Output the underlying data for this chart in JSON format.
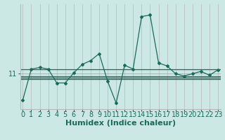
{
  "xlabel": "Humidex (Indice chaleur)",
  "bg_color": "#cce8e4",
  "line_color": "#1a6b5a",
  "grid_color_v": "#b8b8b8",
  "grid_color_h": "#c0a0a0",
  "x_values": [
    0,
    1,
    2,
    3,
    4,
    5,
    6,
    7,
    8,
    9,
    10,
    11,
    12,
    13,
    14,
    15,
    16,
    17,
    18,
    19,
    20,
    21,
    22,
    23
  ],
  "y_main": [
    9.3,
    11.3,
    11.4,
    11.3,
    10.4,
    10.4,
    11.05,
    11.6,
    11.85,
    12.3,
    10.5,
    9.1,
    11.55,
    11.3,
    14.7,
    14.8,
    11.7,
    11.5,
    11.0,
    10.85,
    11.0,
    11.15,
    10.9,
    11.25
  ],
  "y_hline1": 11.3,
  "y_hline2": 10.85,
  "y_hline3": 10.75,
  "y_hline4": 10.65,
  "ytick_val": 11,
  "xlim": [
    -0.3,
    23.3
  ],
  "ylim": [
    8.7,
    15.5
  ],
  "xlabel_fontsize": 8,
  "tick_fontsize": 7
}
